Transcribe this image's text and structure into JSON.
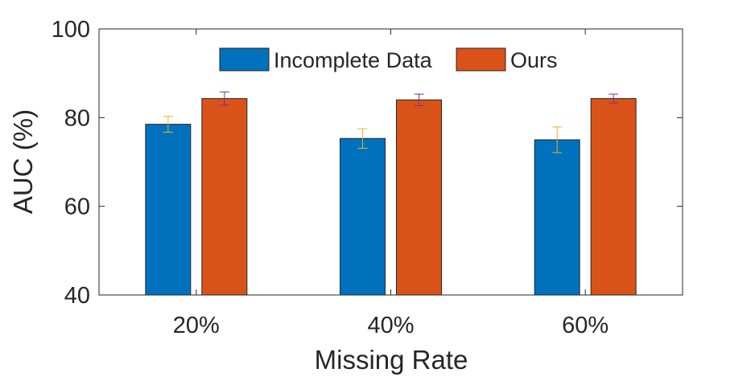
{
  "chart_data": {
    "type": "bar",
    "categories": [
      "20%",
      "40%",
      "60%"
    ],
    "series": [
      {
        "name": "Incomplete Data",
        "color": "#0072BD",
        "error_color": "#EDB120",
        "values": [
          78.5,
          75.3,
          75.0
        ],
        "errors": [
          1.8,
          2.2,
          2.9
        ]
      },
      {
        "name": "Ours",
        "color": "#D95319",
        "error_color": "#7E2F8E",
        "values": [
          84.3,
          84.0,
          84.3
        ],
        "errors": [
          1.5,
          1.3,
          1.0
        ]
      }
    ],
    "xlabel": "Missing Rate",
    "ylabel": "AUC (%)",
    "ylim": [
      40,
      100
    ],
    "yticks": [
      "40",
      "60",
      "80",
      "100"
    ],
    "legend_position": "top-center",
    "grid": false
  }
}
